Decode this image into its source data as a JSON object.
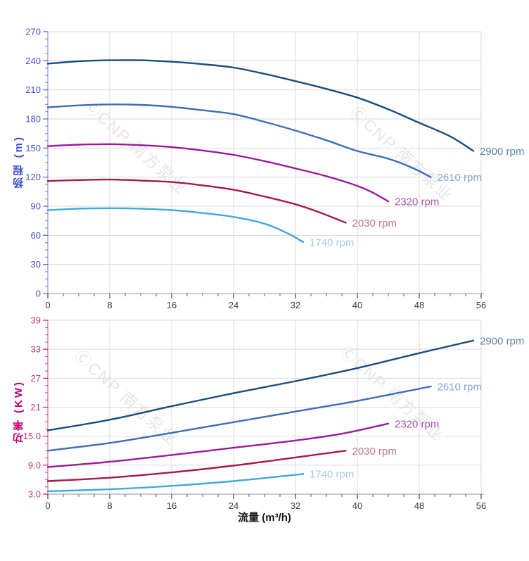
{
  "figure": {
    "x_axis_title": "流量 (m³/h)",
    "watermark_text": "ⒸCNP 南方泵业",
    "background": "#ffffff",
    "grid_color": "#dadada",
    "x_tick_label_color": "#3f3f3f"
  },
  "chart_data": [
    {
      "type": "line",
      "id": "head",
      "y_title": "扬程 (m)",
      "axis_color": "#3c50c8",
      "y_tick_label_color": "#4353cb",
      "x_axis": {
        "min": 0,
        "max": 56,
        "major": 8,
        "minor": 2,
        "tick_values": [
          0,
          8,
          16,
          24,
          32,
          40,
          48,
          56
        ],
        "tick_labels": [
          "0",
          "8",
          "16",
          "24",
          "32",
          "40",
          "48",
          "56"
        ]
      },
      "y_axis": {
        "min": 0,
        "max": 270,
        "major": 30,
        "minor": 7.5,
        "tick_values": [
          0,
          30,
          60,
          90,
          120,
          150,
          180,
          210,
          240,
          270
        ],
        "tick_labels": [
          "0",
          "30",
          "60",
          "90",
          "120",
          "150",
          "180",
          "210",
          "240",
          "270"
        ]
      },
      "grid": true,
      "legend_position": "end-of-curve",
      "series": [
        {
          "name": "2900 rpm",
          "color": "#1b4d7d",
          "label_color": "#5d83a8",
          "points": [
            [
              0,
              237
            ],
            [
              4,
              239.5
            ],
            [
              8,
              240.5
            ],
            [
              12,
              240.5
            ],
            [
              16,
              239
            ],
            [
              20,
              236.5
            ],
            [
              24,
              233
            ],
            [
              28,
              226.5
            ],
            [
              32,
              219
            ],
            [
              36,
              211
            ],
            [
              40,
              202
            ],
            [
              44,
              190
            ],
            [
              48,
              176
            ],
            [
              52,
              162
            ],
            [
              55,
              147
            ]
          ]
        },
        {
          "name": "2610 rpm",
          "color": "#3d6db5",
          "label_color": "#8aa3d4",
          "points": [
            [
              0,
              192
            ],
            [
              4,
              194
            ],
            [
              8,
              195
            ],
            [
              12,
              194.5
            ],
            [
              16,
              192.5
            ],
            [
              20,
              189
            ],
            [
              24,
              185
            ],
            [
              28,
              177
            ],
            [
              32,
              168
            ],
            [
              36,
              158
            ],
            [
              40,
              147
            ],
            [
              44,
              139
            ],
            [
              47,
              130
            ],
            [
              49.5,
              120
            ]
          ]
        },
        {
          "name": "2320 rpm",
          "color": "#9c1a9c",
          "label_color": "#aa55aa",
          "points": [
            [
              0,
              152
            ],
            [
              4,
              153.5
            ],
            [
              8,
              154
            ],
            [
              12,
              153
            ],
            [
              16,
              151
            ],
            [
              20,
              147.5
            ],
            [
              24,
              143
            ],
            [
              28,
              136.5
            ],
            [
              32,
              129
            ],
            [
              36,
              121
            ],
            [
              40,
              111
            ],
            [
              42,
              104
            ],
            [
              44,
              95
            ]
          ]
        },
        {
          "name": "2030 rpm",
          "color": "#a31c44",
          "label_color": "#bd7793",
          "points": [
            [
              0,
              116
            ],
            [
              4,
              117
            ],
            [
              8,
              117.5
            ],
            [
              12,
              116.5
            ],
            [
              16,
              115
            ],
            [
              20,
              111.5
            ],
            [
              24,
              107
            ],
            [
              28,
              100
            ],
            [
              32,
              92
            ],
            [
              35,
              84
            ],
            [
              38.5,
              73
            ]
          ]
        },
        {
          "name": "1740 rpm",
          "color": "#3fa9dc",
          "label_color": "#9fcdeb",
          "points": [
            [
              0,
              86
            ],
            [
              4,
              87.5
            ],
            [
              8,
              88
            ],
            [
              12,
              87.5
            ],
            [
              16,
              86
            ],
            [
              20,
              83
            ],
            [
              24,
              79
            ],
            [
              28,
              72
            ],
            [
              31,
              62
            ],
            [
              33,
              53
            ]
          ]
        }
      ]
    },
    {
      "type": "line",
      "id": "power",
      "y_title": "功率 (KW)",
      "axis_color": "#c4006e",
      "y_tick_label_color": "#c13a75",
      "x_axis": {
        "min": 0,
        "max": 56,
        "major": 8,
        "minor": 2,
        "tick_values": [
          0,
          8,
          16,
          24,
          32,
          40,
          48,
          56
        ],
        "tick_labels": [
          "0",
          "8",
          "16",
          "24",
          "32",
          "40",
          "48",
          "56"
        ]
      },
      "y_axis": {
        "min": 3,
        "max": 39,
        "major": 6,
        "minor": 1.5,
        "tick_values": [
          3,
          9,
          15,
          21,
          27,
          33,
          39
        ],
        "tick_labels": [
          "3.0",
          "9.0",
          "15.0",
          "21",
          "27",
          "33",
          "39"
        ]
      },
      "grid": true,
      "legend_position": "end-of-curve",
      "series": [
        {
          "name": "2900 rpm",
          "color": "#1b4d7d",
          "label_color": "#5d83a8",
          "points": [
            [
              0,
              16.2
            ],
            [
              8,
              18.4
            ],
            [
              16,
              21.2
            ],
            [
              24,
              23.9
            ],
            [
              32,
              26.4
            ],
            [
              40,
              29.1
            ],
            [
              48,
              32.2
            ],
            [
              55,
              34.8
            ]
          ]
        },
        {
          "name": "2610 rpm",
          "color": "#3d6db5",
          "label_color": "#8aa3d4",
          "points": [
            [
              0,
              12.0
            ],
            [
              8,
              13.6
            ],
            [
              16,
              15.7
            ],
            [
              24,
              17.9
            ],
            [
              32,
              20.1
            ],
            [
              40,
              22.3
            ],
            [
              49.5,
              25.3
            ]
          ]
        },
        {
          "name": "2320 rpm",
          "color": "#9c1a9c",
          "label_color": "#aa55aa",
          "points": [
            [
              0,
              8.6
            ],
            [
              8,
              9.7
            ],
            [
              16,
              11.1
            ],
            [
              24,
              12.6
            ],
            [
              32,
              14.1
            ],
            [
              38,
              15.5
            ],
            [
              44,
              17.6
            ]
          ]
        },
        {
          "name": "2030 rpm",
          "color": "#a31c44",
          "label_color": "#bd7793",
          "points": [
            [
              0,
              5.7
            ],
            [
              8,
              6.4
            ],
            [
              16,
              7.5
            ],
            [
              24,
              8.9
            ],
            [
              32,
              10.6
            ],
            [
              38.5,
              12.0
            ]
          ]
        },
        {
          "name": "1740 rpm",
          "color": "#3fa9dc",
          "label_color": "#9fcdeb",
          "points": [
            [
              0,
              3.6
            ],
            [
              8,
              4.0
            ],
            [
              16,
              4.7
            ],
            [
              24,
              5.7
            ],
            [
              32,
              7.0
            ],
            [
              33,
              7.2
            ]
          ]
        }
      ]
    }
  ]
}
